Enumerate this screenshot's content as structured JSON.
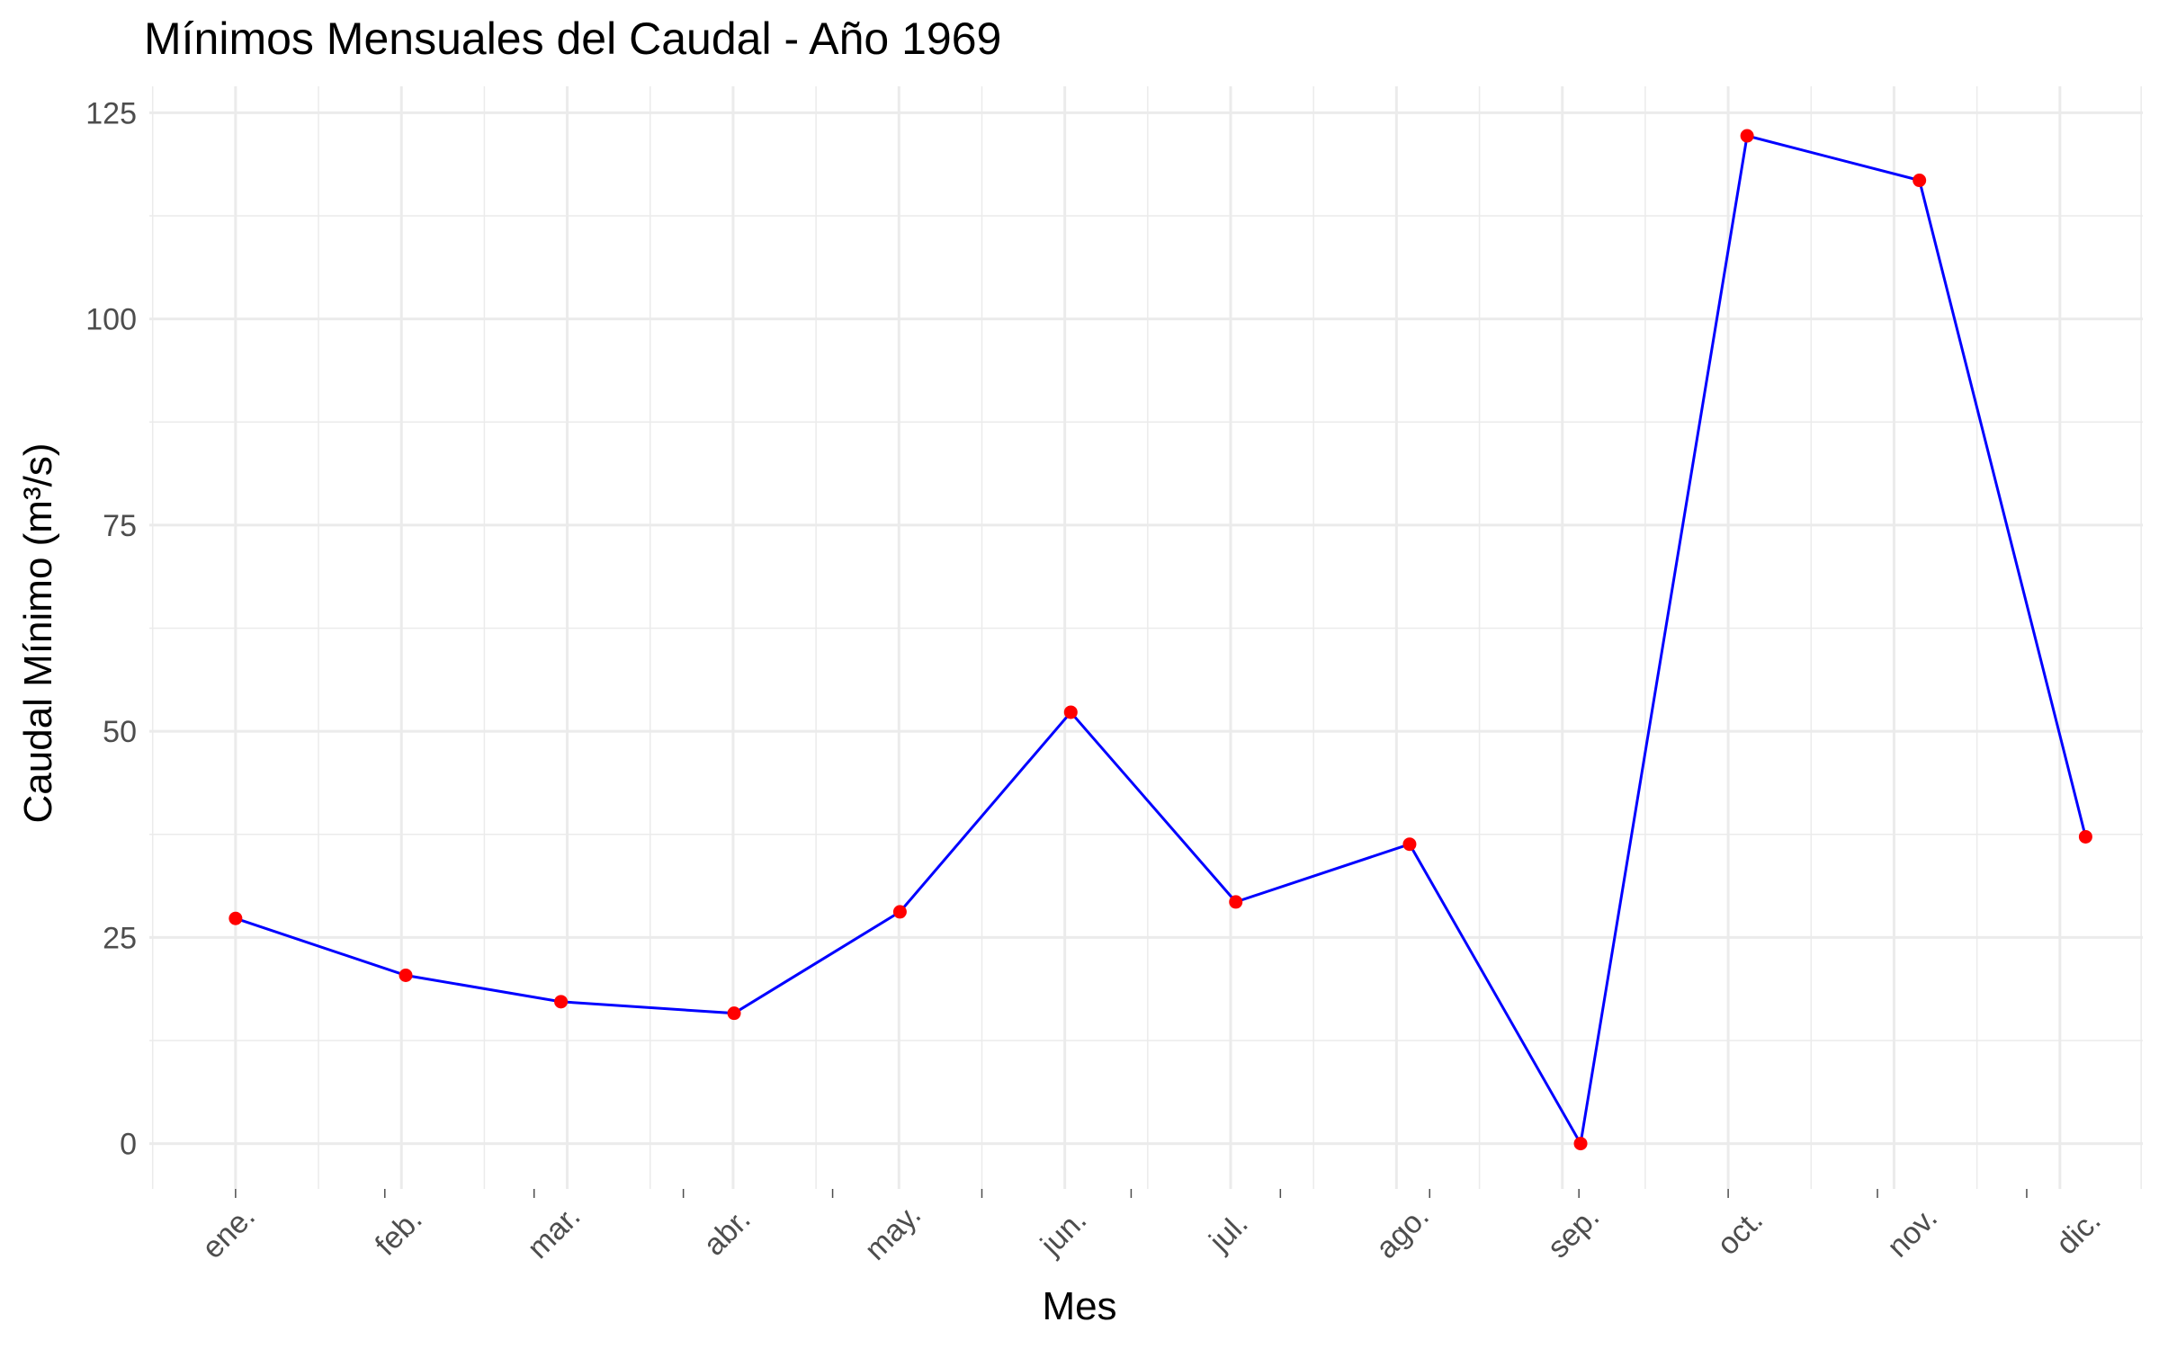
{
  "chart_data": {
    "type": "line",
    "title": "Mínimos Mensuales del Caudal - Año 1969",
    "xlabel": "Mes",
    "ylabel": "Caudal Mínimo (m³/s)",
    "categories": [
      "ene.",
      "feb.",
      "mar.",
      "abr.",
      "may.",
      "jun.",
      "jul.",
      "ago.",
      "sep.",
      "oct.",
      "nov.",
      "dic."
    ],
    "x_tick_positions": [
      1,
      2.026,
      2.962,
      4.006,
      5.006,
      6.036,
      7.031,
      8.079,
      9.11,
      10.114,
      11.153,
      12.155
    ],
    "x_vertical_gridlines_major": [
      1,
      2,
      3,
      4,
      5,
      6,
      7,
      8,
      9,
      10,
      11,
      12
    ],
    "values": [
      27.3,
      20.4,
      17.2,
      15.8,
      28.1,
      52.3,
      29.3,
      36.3,
      0.0,
      122.2,
      116.8,
      37.2
    ],
    "yticks": [
      0,
      25,
      50,
      75,
      100,
      125
    ],
    "ylim": [
      -5.5,
      128.2
    ],
    "xlim": [
      0.48,
      12.5
    ],
    "grid": true,
    "line_color": "#0000ff",
    "point_color": "#ff0000",
    "grid_color": "#ebebeb"
  }
}
